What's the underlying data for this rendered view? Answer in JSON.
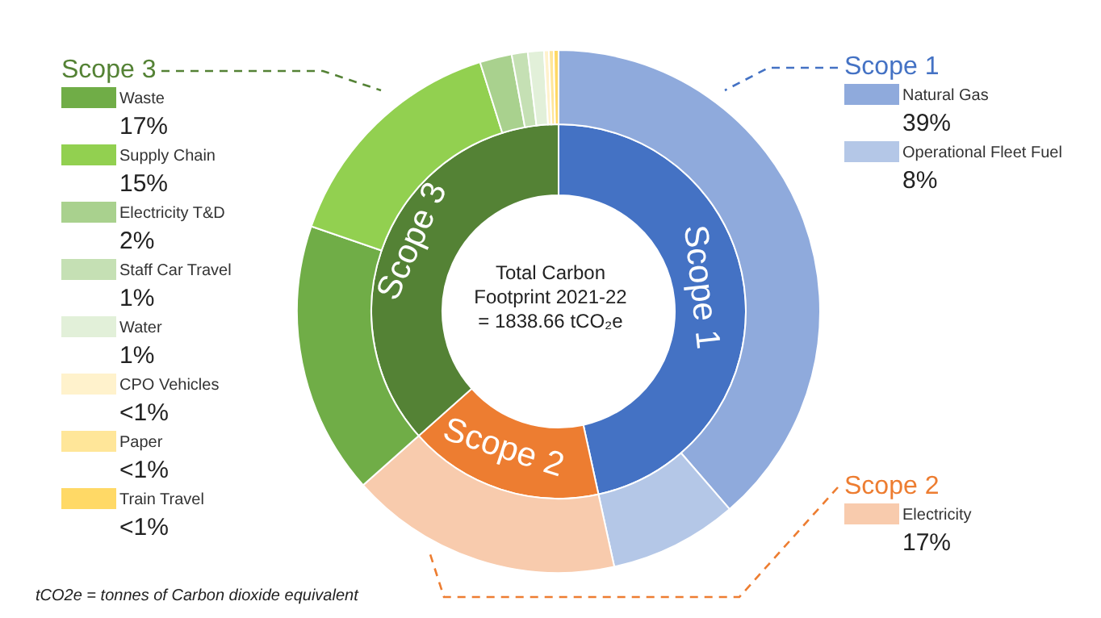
{
  "chart_data": [
    {
      "type": "donut",
      "categories": [
        "Scope 1",
        "Scope 2",
        "Scope 3"
      ],
      "values": [
        47,
        17,
        36.9
      ],
      "colors": [
        "#4472c4",
        "#ed7d31",
        "#548235"
      ]
    },
    {
      "type": "donut",
      "title": "Total Carbon Footprint 2021-22 = 1838.66 tCO₂e",
      "legend": "left",
      "annotations": [
        "tCO2e = tonnes of Carbon dioxide equivalent"
      ],
      "categories": [
        "Natural Gas",
        "Operational Fleet Fuel",
        "Electricity",
        "Waste",
        "Supply Chain",
        "Electricity T&D",
        "Staff Car Travel",
        "Water",
        "CPO Vehicles",
        "Paper",
        "Train Travel"
      ],
      "values": [
        39,
        8,
        17,
        17,
        15,
        2,
        1,
        1,
        0.3,
        0.3,
        0.3
      ],
      "colors": [
        "#8faadc",
        "#b4c7e7",
        "#f8cbad",
        "#70ad47",
        "#92d050",
        "#a9d18e",
        "#c5e0b4",
        "#e2f0d9",
        "#fff2cc",
        "#ffe699",
        "#ffd966"
      ],
      "value_labels": [
        "39%",
        "8%",
        "17%",
        "17%",
        "15%",
        "2%",
        "1%",
        "1%",
        "<1%",
        "<1%",
        "<1%"
      ]
    }
  ]
}
